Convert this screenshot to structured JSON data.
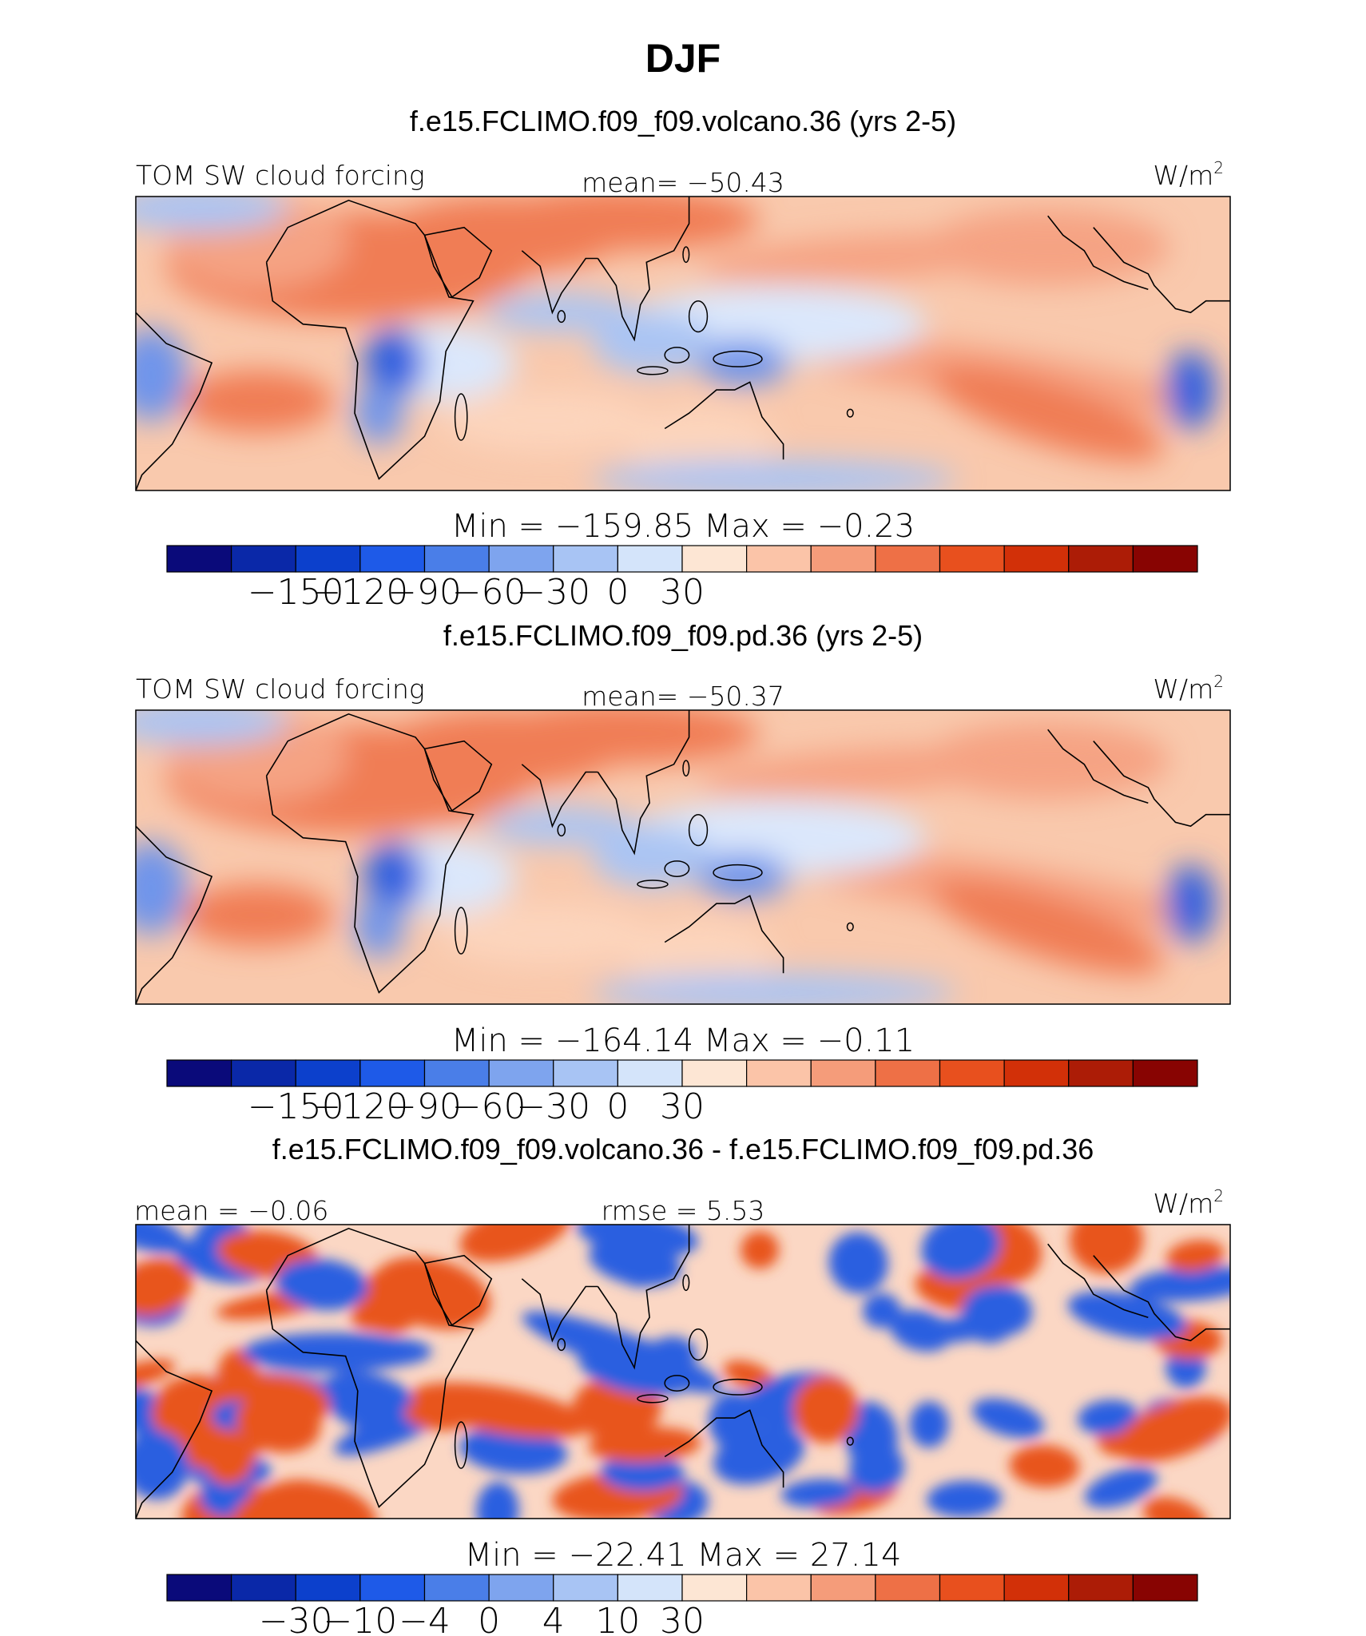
{
  "chart_data": {
    "type": "heatmap",
    "title": "DJF",
    "panels": [
      {
        "subtitle": "f.e15.FCLIMO.f09_f09.volcano.36 (yrs 2-5)",
        "variable": "TOM SW cloud forcing",
        "stat_left": "",
        "stat_center": "mean= −50.43",
        "units": "W/m",
        "units_sup": "2",
        "colorbar_title": "Min = −159.85 Max =  −0.23",
        "colorbar_ticks": [
          "−150",
          "−120",
          "−90",
          "−60",
          "−30",
          "0",
          "30"
        ],
        "min": -159.85,
        "max": -0.23,
        "mean": -50.43
      },
      {
        "subtitle": "f.e15.FCLIMO.f09_f09.pd.36 (yrs 2-5)",
        "variable": "TOM SW cloud forcing",
        "stat_left": "",
        "stat_center": "mean= −50.37",
        "units": "W/m",
        "units_sup": "2",
        "colorbar_title": "Min = −164.14 Max =  −0.11",
        "colorbar_ticks": [
          "−150",
          "−120",
          "−90",
          "−60",
          "−30",
          "0",
          "30"
        ],
        "min": -164.14,
        "max": -0.11,
        "mean": -50.37
      },
      {
        "subtitle": "f.e15.FCLIMO.f09_f09.volcano.36 - f.e15.FCLIMO.f09_f09.pd.36",
        "variable": "",
        "stat_left": "mean =  −0.06",
        "stat_center": "rmse =   5.53",
        "units": "W/m",
        "units_sup": "2",
        "colorbar_title": "Min = −22.41 Max =  27.14",
        "colorbar_ticks": [
          "−30",
          "−10",
          "−4",
          "0",
          "4",
          "10",
          "30"
        ],
        "min": -22.41,
        "max": 27.14,
        "mean": -0.06,
        "rmse": 5.53
      }
    ],
    "colorbar_colors": [
      "#0a0a7a",
      "#0a28a8",
      "#0c40cc",
      "#1e5ae8",
      "#4a7ee8",
      "#7ea4ee",
      "#a8c4f4",
      "#d4e4fa",
      "#fde6d4",
      "#fbc4a8",
      "#f59c7a",
      "#ee7046",
      "#e8501e",
      "#d23008",
      "#ac1c06",
      "#880402"
    ],
    "colors": {
      "sahara": "#f07d55",
      "subtrop": "#f5a383",
      "pale_warm": "#fcd4bc",
      "pale_blue": "#dbe7fb",
      "light_blue": "#aac4f3",
      "mid_blue": "#6f94ea",
      "deep_blue": "#2d5fdf",
      "neg": "#2c5fe0",
      "pos": "#e8541e",
      "land": "#000000"
    }
  }
}
